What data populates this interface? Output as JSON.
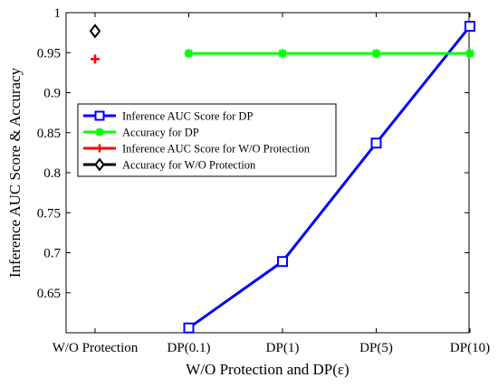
{
  "chart_data": {
    "type": "line",
    "categories": [
      "W/O Protection",
      "DP(0.1)",
      "DP(1)",
      "DP(5)",
      "DP(10)"
    ],
    "xlabel": "W/O Protection and DP(ε)",
    "ylabel": "Inference AUC Score & Accuracy",
    "ylim": [
      0.6,
      1.0
    ],
    "yticks": [
      "0.65",
      "0.7",
      "0.75",
      "0.8",
      "0.85",
      "0.9",
      "0.95",
      "1"
    ],
    "grid": false,
    "legend_position": "upper-left",
    "series": [
      {
        "name": "Inference AUC Score for DP",
        "color": "#0000ff",
        "marker": "square",
        "x": [
          "DP(0.1)",
          "DP(1)",
          "DP(5)",
          "DP(10)"
        ],
        "values": [
          0.606,
          0.689,
          0.837,
          0.983
        ]
      },
      {
        "name": "Accuracy for DP",
        "color": "#00ff00",
        "marker": "asterisk",
        "x": [
          "DP(0.1)",
          "DP(1)",
          "DP(5)",
          "DP(10)"
        ],
        "values": [
          0.949,
          0.949,
          0.949,
          0.949
        ]
      },
      {
        "name": "Inference AUC Score for W/O Protection",
        "color": "#ff0000",
        "marker": "plus",
        "x": [
          "W/O Protection"
        ],
        "values": [
          0.942
        ]
      },
      {
        "name": "Accuracy for W/O Protection",
        "color": "#000000",
        "marker": "diamond",
        "x": [
          "W/O Protection"
        ],
        "values": [
          0.977
        ]
      }
    ]
  }
}
